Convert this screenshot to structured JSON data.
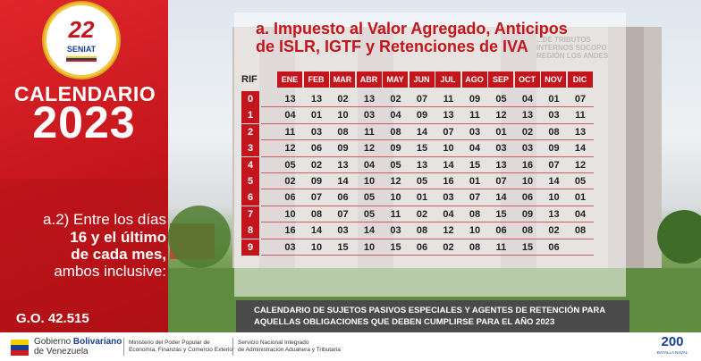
{
  "logo": {
    "number": "22",
    "name": "SENIAT"
  },
  "title": {
    "word": "CALENDARIO",
    "year": "2023"
  },
  "note": {
    "line1": "a.2) Entre los días",
    "line2": "16 y el último",
    "line3": "de cada mes,",
    "line4": "ambos inclusive:"
  },
  "gaceta": "G.O. 42.515",
  "heading": {
    "line1": "a. Impuesto al Valor Agregado, Anticipos",
    "line2": "de ISLR, IGTF y Retenciones de IVA"
  },
  "background_sign": {
    "line1": "...DE TRIBUTOS",
    "line2": "INTERNOS SOCOPO",
    "line3": "REGIÓN LOS ANDES"
  },
  "table": {
    "rif_header": "RIF",
    "months": [
      "ENE",
      "FEB",
      "MAR",
      "ABR",
      "MAY",
      "JUN",
      "JUL",
      "AGO",
      "SEP",
      "OCT",
      "NOV",
      "DIC"
    ],
    "rows": [
      {
        "rif": "0",
        "days": [
          "13",
          "13",
          "02",
          "13",
          "02",
          "07",
          "11",
          "09",
          "05",
          "04",
          "01",
          "07"
        ]
      },
      {
        "rif": "1",
        "days": [
          "04",
          "01",
          "10",
          "03",
          "04",
          "09",
          "13",
          "11",
          "12",
          "13",
          "03",
          "11"
        ]
      },
      {
        "rif": "2",
        "days": [
          "11",
          "03",
          "08",
          "11",
          "08",
          "14",
          "07",
          "03",
          "01",
          "02",
          "08",
          "13"
        ]
      },
      {
        "rif": "3",
        "days": [
          "12",
          "06",
          "09",
          "12",
          "09",
          "15",
          "10",
          "04",
          "03",
          "03",
          "09",
          "14"
        ]
      },
      {
        "rif": "4",
        "days": [
          "05",
          "02",
          "13",
          "04",
          "05",
          "13",
          "14",
          "15",
          "13",
          "16",
          "07",
          "12"
        ]
      },
      {
        "rif": "5",
        "days": [
          "02",
          "09",
          "14",
          "10",
          "12",
          "05",
          "16",
          "01",
          "07",
          "10",
          "14",
          "05"
        ]
      },
      {
        "rif": "6",
        "days": [
          "06",
          "07",
          "06",
          "05",
          "10",
          "01",
          "03",
          "07",
          "14",
          "06",
          "10",
          "01"
        ]
      },
      {
        "rif": "7",
        "days": [
          "10",
          "08",
          "07",
          "05",
          "11",
          "02",
          "04",
          "08",
          "15",
          "09",
          "13",
          "04"
        ]
      },
      {
        "rif": "8",
        "days": [
          "16",
          "14",
          "03",
          "14",
          "03",
          "08",
          "12",
          "10",
          "06",
          "08",
          "02",
          "08"
        ]
      },
      {
        "rif": "9",
        "days": [
          "03",
          "10",
          "15",
          "10",
          "15",
          "06",
          "02",
          "08",
          "11",
          "15",
          "06",
          ""
        ]
      }
    ]
  },
  "caption": {
    "line1": "CALENDARIO DE SUJETOS PASIVOS ESPECIALES Y AGENTES DE RETENCIÓN PARA",
    "line2": "AQUELLAS OBLIGACIONES QUE DEBEN CUMPLIRSE PARA EL AÑO 2023"
  },
  "footer": {
    "gob_a": "Gobierno ",
    "gob_b": "Bolivariano",
    "gob_c": "de Venezuela",
    "min_1": "Ministerio del Poder Popular de",
    "min_2": "Economía, Finanzas y Comercio Exterior",
    "sen_1": "Servicio Nacional Integrado",
    "sen_2": "de Administración Aduanera y Tributaria",
    "b200": "200",
    "b200_sub": "BATALLA NAVAL"
  },
  "colors": {
    "brand_red": "#c3161c",
    "brand_blue": "#1a3f8c",
    "caption_bg": "#4a4a4a"
  }
}
